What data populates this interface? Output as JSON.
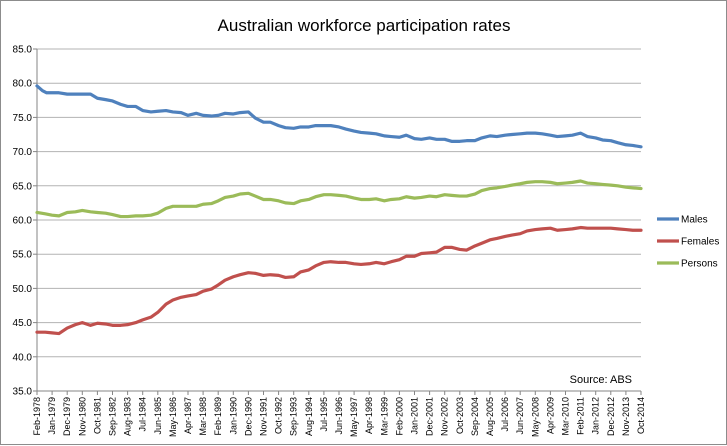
{
  "chart_data": {
    "type": "line",
    "title": "Australian workforce participation rates",
    "source_note": "Source: ABS",
    "xlabel": "",
    "ylabel": "",
    "ylim": [
      35.0,
      85.0
    ],
    "yticks": [
      "35.0",
      "40.0",
      "45.0",
      "50.0",
      "55.0",
      "60.0",
      "65.0",
      "70.0",
      "75.0",
      "80.0",
      "85.0"
    ],
    "xlim": [
      "1978-02",
      "2014-10"
    ],
    "x_tick_labels": [
      {
        "date": "1978-02",
        "label": "Feb-1978"
      },
      {
        "date": "1979-01",
        "label": "Jan-1979"
      },
      {
        "date": "1979-12",
        "label": "Dec-1979"
      },
      {
        "date": "1980-11",
        "label": "Nov-1980"
      },
      {
        "date": "1981-10",
        "label": "Oct-1981"
      },
      {
        "date": "1982-09",
        "label": "Sep-1982"
      },
      {
        "date": "1983-08",
        "label": "Aug-1983"
      },
      {
        "date": "1984-07",
        "label": "Jul-1984"
      },
      {
        "date": "1985-06",
        "label": "Jun-1985"
      },
      {
        "date": "1986-05",
        "label": "May-1986"
      },
      {
        "date": "1987-04",
        "label": "Apr-1987"
      },
      {
        "date": "1988-03",
        "label": "Mar-1988"
      },
      {
        "date": "1989-02",
        "label": "Feb-1989"
      },
      {
        "date": "1990-01",
        "label": "Jan-1990"
      },
      {
        "date": "1990-12",
        "label": "Dec-1990"
      },
      {
        "date": "1991-11",
        "label": "Nov-1991"
      },
      {
        "date": "1992-10",
        "label": "Oct-1992"
      },
      {
        "date": "1993-09",
        "label": "Sep-1993"
      },
      {
        "date": "1994-08",
        "label": "Aug-1994"
      },
      {
        "date": "1995-07",
        "label": "Jul-1995"
      },
      {
        "date": "1996-06",
        "label": "Jun-1996"
      },
      {
        "date": "1997-05",
        "label": "May-1997"
      },
      {
        "date": "1998-04",
        "label": "Apr-1998"
      },
      {
        "date": "1999-03",
        "label": "Mar-1999"
      },
      {
        "date": "2000-02",
        "label": "Feb-2000"
      },
      {
        "date": "2001-01",
        "label": "Jan-2001"
      },
      {
        "date": "2001-12",
        "label": "Dec-2001"
      },
      {
        "date": "2002-11",
        "label": "Nov-2002"
      },
      {
        "date": "2003-10",
        "label": "Oct-2003"
      },
      {
        "date": "2004-09",
        "label": "Sep-2004"
      },
      {
        "date": "2005-08",
        "label": "Aug-2005"
      },
      {
        "date": "2006-07",
        "label": "Jul-2006"
      },
      {
        "date": "2007-06",
        "label": "Jun-2007"
      },
      {
        "date": "2008-05",
        "label": "May-2008"
      },
      {
        "date": "2009-04",
        "label": "Apr-2009"
      },
      {
        "date": "2010-03",
        "label": "Mar-2010"
      },
      {
        "date": "2011-02",
        "label": "Feb-2011"
      },
      {
        "date": "2012-01",
        "label": "Jan-2012"
      },
      {
        "date": "2012-12",
        "label": "Dec-2012"
      },
      {
        "date": "2013-11",
        "label": "Nov-2013"
      },
      {
        "date": "2014-10",
        "label": "Oct-2014"
      }
    ],
    "grid": {
      "horizontal": true,
      "vertical": false
    },
    "legend_position": "right",
    "series": [
      {
        "name": "Males",
        "color": "#4f81bd",
        "points": [
          [
            "1978-02",
            79.6
          ],
          [
            "1978-06",
            78.9
          ],
          [
            "1978-09",
            78.6
          ],
          [
            "1979-06",
            78.6
          ],
          [
            "1979-12",
            78.4
          ],
          [
            "1980-06",
            78.4
          ],
          [
            "1980-11",
            78.4
          ],
          [
            "1981-05",
            78.4
          ],
          [
            "1981-10",
            77.8
          ],
          [
            "1982-04",
            77.6
          ],
          [
            "1982-09",
            77.4
          ],
          [
            "1983-03",
            76.9
          ],
          [
            "1983-08",
            76.6
          ],
          [
            "1984-02",
            76.6
          ],
          [
            "1984-07",
            76.0
          ],
          [
            "1985-01",
            75.8
          ],
          [
            "1985-06",
            75.9
          ],
          [
            "1985-12",
            76.0
          ],
          [
            "1986-05",
            75.8
          ],
          [
            "1986-11",
            75.7
          ],
          [
            "1987-04",
            75.3
          ],
          [
            "1987-10",
            75.6
          ],
          [
            "1988-03",
            75.3
          ],
          [
            "1988-09",
            75.2
          ],
          [
            "1989-02",
            75.3
          ],
          [
            "1989-07",
            75.6
          ],
          [
            "1990-01",
            75.5
          ],
          [
            "1990-06",
            75.7
          ],
          [
            "1990-12",
            75.8
          ],
          [
            "1991-05",
            74.9
          ],
          [
            "1991-11",
            74.3
          ],
          [
            "1992-04",
            74.3
          ],
          [
            "1992-10",
            73.8
          ],
          [
            "1993-03",
            73.5
          ],
          [
            "1993-09",
            73.4
          ],
          [
            "1994-02",
            73.6
          ],
          [
            "1994-08",
            73.6
          ],
          [
            "1995-01",
            73.8
          ],
          [
            "1995-07",
            73.8
          ],
          [
            "1995-12",
            73.8
          ],
          [
            "1996-06",
            73.6
          ],
          [
            "1996-11",
            73.3
          ],
          [
            "1997-05",
            73.0
          ],
          [
            "1997-10",
            72.8
          ],
          [
            "1998-04",
            72.7
          ],
          [
            "1998-09",
            72.6
          ],
          [
            "1999-03",
            72.3
          ],
          [
            "1999-08",
            72.2
          ],
          [
            "2000-02",
            72.1
          ],
          [
            "2000-07",
            72.4
          ],
          [
            "2001-01",
            71.9
          ],
          [
            "2001-06",
            71.8
          ],
          [
            "2001-12",
            72.0
          ],
          [
            "2002-05",
            71.8
          ],
          [
            "2002-11",
            71.8
          ],
          [
            "2003-04",
            71.5
          ],
          [
            "2003-10",
            71.5
          ],
          [
            "2004-03",
            71.6
          ],
          [
            "2004-09",
            71.6
          ],
          [
            "2005-02",
            72.0
          ],
          [
            "2005-08",
            72.3
          ],
          [
            "2006-01",
            72.2
          ],
          [
            "2006-07",
            72.4
          ],
          [
            "2006-12",
            72.5
          ],
          [
            "2007-06",
            72.6
          ],
          [
            "2007-11",
            72.7
          ],
          [
            "2008-05",
            72.7
          ],
          [
            "2008-10",
            72.6
          ],
          [
            "2009-04",
            72.4
          ],
          [
            "2009-09",
            72.2
          ],
          [
            "2010-03",
            72.3
          ],
          [
            "2010-08",
            72.4
          ],
          [
            "2011-02",
            72.7
          ],
          [
            "2011-07",
            72.2
          ],
          [
            "2012-01",
            72.0
          ],
          [
            "2012-06",
            71.7
          ],
          [
            "2012-12",
            71.6
          ],
          [
            "2013-05",
            71.3
          ],
          [
            "2013-11",
            71.0
          ],
          [
            "2014-04",
            70.9
          ],
          [
            "2014-10",
            70.7
          ]
        ]
      },
      {
        "name": "Females",
        "color": "#c0504d",
        "points": [
          [
            "1978-02",
            43.6
          ],
          [
            "1978-08",
            43.6
          ],
          [
            "1979-01",
            43.5
          ],
          [
            "1979-06",
            43.4
          ],
          [
            "1979-12",
            44.2
          ],
          [
            "1980-06",
            44.7
          ],
          [
            "1980-11",
            45.0
          ],
          [
            "1981-05",
            44.6
          ],
          [
            "1981-10",
            44.9
          ],
          [
            "1982-04",
            44.8
          ],
          [
            "1982-09",
            44.6
          ],
          [
            "1983-03",
            44.6
          ],
          [
            "1983-08",
            44.7
          ],
          [
            "1984-02",
            45.0
          ],
          [
            "1984-07",
            45.4
          ],
          [
            "1985-01",
            45.8
          ],
          [
            "1985-06",
            46.5
          ],
          [
            "1985-12",
            47.7
          ],
          [
            "1986-05",
            48.3
          ],
          [
            "1986-11",
            48.7
          ],
          [
            "1987-04",
            48.9
          ],
          [
            "1987-10",
            49.1
          ],
          [
            "1988-03",
            49.6
          ],
          [
            "1988-09",
            49.9
          ],
          [
            "1989-02",
            50.5
          ],
          [
            "1989-07",
            51.2
          ],
          [
            "1990-01",
            51.7
          ],
          [
            "1990-06",
            52.0
          ],
          [
            "1990-12",
            52.3
          ],
          [
            "1991-05",
            52.2
          ],
          [
            "1991-11",
            51.9
          ],
          [
            "1992-04",
            52.0
          ],
          [
            "1992-10",
            51.9
          ],
          [
            "1993-03",
            51.6
          ],
          [
            "1993-09",
            51.7
          ],
          [
            "1994-02",
            52.4
          ],
          [
            "1994-08",
            52.7
          ],
          [
            "1995-01",
            53.3
          ],
          [
            "1995-07",
            53.8
          ],
          [
            "1995-12",
            53.9
          ],
          [
            "1996-06",
            53.8
          ],
          [
            "1996-11",
            53.8
          ],
          [
            "1997-05",
            53.6
          ],
          [
            "1997-10",
            53.5
          ],
          [
            "1998-04",
            53.6
          ],
          [
            "1998-09",
            53.8
          ],
          [
            "1999-03",
            53.6
          ],
          [
            "1999-08",
            53.9
          ],
          [
            "2000-02",
            54.2
          ],
          [
            "2000-07",
            54.7
          ],
          [
            "2001-01",
            54.7
          ],
          [
            "2001-06",
            55.1
          ],
          [
            "2001-12",
            55.2
          ],
          [
            "2002-05",
            55.3
          ],
          [
            "2002-11",
            56.0
          ],
          [
            "2003-04",
            56.0
          ],
          [
            "2003-10",
            55.7
          ],
          [
            "2004-03",
            55.6
          ],
          [
            "2004-09",
            56.2
          ],
          [
            "2005-02",
            56.6
          ],
          [
            "2005-08",
            57.1
          ],
          [
            "2006-01",
            57.3
          ],
          [
            "2006-07",
            57.6
          ],
          [
            "2006-12",
            57.8
          ],
          [
            "2007-06",
            58.0
          ],
          [
            "2007-11",
            58.4
          ],
          [
            "2008-05",
            58.6
          ],
          [
            "2008-10",
            58.7
          ],
          [
            "2009-04",
            58.8
          ],
          [
            "2009-09",
            58.5
          ],
          [
            "2010-03",
            58.6
          ],
          [
            "2010-08",
            58.7
          ],
          [
            "2011-02",
            58.9
          ],
          [
            "2011-07",
            58.8
          ],
          [
            "2012-01",
            58.8
          ],
          [
            "2012-06",
            58.8
          ],
          [
            "2012-12",
            58.8
          ],
          [
            "2013-05",
            58.7
          ],
          [
            "2013-11",
            58.6
          ],
          [
            "2014-04",
            58.5
          ],
          [
            "2014-10",
            58.5
          ]
        ]
      },
      {
        "name": "Persons",
        "color": "#9bbb59",
        "points": [
          [
            "1978-02",
            61.1
          ],
          [
            "1978-08",
            60.9
          ],
          [
            "1979-01",
            60.7
          ],
          [
            "1979-06",
            60.6
          ],
          [
            "1979-12",
            61.1
          ],
          [
            "1980-06",
            61.2
          ],
          [
            "1980-11",
            61.4
          ],
          [
            "1981-05",
            61.2
          ],
          [
            "1981-10",
            61.1
          ],
          [
            "1982-04",
            61.0
          ],
          [
            "1982-09",
            60.8
          ],
          [
            "1983-03",
            60.5
          ],
          [
            "1983-08",
            60.5
          ],
          [
            "1984-02",
            60.6
          ],
          [
            "1984-07",
            60.6
          ],
          [
            "1985-01",
            60.7
          ],
          [
            "1985-06",
            61.0
          ],
          [
            "1985-12",
            61.7
          ],
          [
            "1986-05",
            62.0
          ],
          [
            "1986-11",
            62.0
          ],
          [
            "1987-04",
            62.0
          ],
          [
            "1987-10",
            62.0
          ],
          [
            "1988-03",
            62.3
          ],
          [
            "1988-09",
            62.4
          ],
          [
            "1989-02",
            62.8
          ],
          [
            "1989-07",
            63.3
          ],
          [
            "1990-01",
            63.5
          ],
          [
            "1990-06",
            63.8
          ],
          [
            "1990-12",
            63.9
          ],
          [
            "1991-05",
            63.5
          ],
          [
            "1991-11",
            63.0
          ],
          [
            "1992-04",
            63.0
          ],
          [
            "1992-10",
            62.8
          ],
          [
            "1993-03",
            62.5
          ],
          [
            "1993-09",
            62.4
          ],
          [
            "1994-02",
            62.8
          ],
          [
            "1994-08",
            63.0
          ],
          [
            "1995-01",
            63.4
          ],
          [
            "1995-07",
            63.7
          ],
          [
            "1995-12",
            63.7
          ],
          [
            "1996-06",
            63.6
          ],
          [
            "1996-11",
            63.5
          ],
          [
            "1997-05",
            63.2
          ],
          [
            "1997-10",
            63.0
          ],
          [
            "1998-04",
            63.0
          ],
          [
            "1998-09",
            63.1
          ],
          [
            "1999-03",
            62.8
          ],
          [
            "1999-08",
            63.0
          ],
          [
            "2000-02",
            63.1
          ],
          [
            "2000-07",
            63.4
          ],
          [
            "2001-01",
            63.2
          ],
          [
            "2001-06",
            63.3
          ],
          [
            "2001-12",
            63.5
          ],
          [
            "2002-05",
            63.4
          ],
          [
            "2002-11",
            63.7
          ],
          [
            "2003-04",
            63.6
          ],
          [
            "2003-10",
            63.5
          ],
          [
            "2004-03",
            63.5
          ],
          [
            "2004-09",
            63.8
          ],
          [
            "2005-02",
            64.3
          ],
          [
            "2005-08",
            64.6
          ],
          [
            "2006-01",
            64.7
          ],
          [
            "2006-07",
            64.9
          ],
          [
            "2006-12",
            65.1
          ],
          [
            "2007-06",
            65.3
          ],
          [
            "2007-11",
            65.5
          ],
          [
            "2008-05",
            65.6
          ],
          [
            "2008-10",
            65.6
          ],
          [
            "2009-04",
            65.5
          ],
          [
            "2009-09",
            65.3
          ],
          [
            "2010-03",
            65.4
          ],
          [
            "2010-08",
            65.5
          ],
          [
            "2011-02",
            65.7
          ],
          [
            "2011-07",
            65.4
          ],
          [
            "2012-01",
            65.3
          ],
          [
            "2012-06",
            65.2
          ],
          [
            "2012-12",
            65.1
          ],
          [
            "2013-05",
            65.0
          ],
          [
            "2013-11",
            64.8
          ],
          [
            "2014-04",
            64.7
          ],
          [
            "2014-10",
            64.6
          ]
        ]
      }
    ]
  }
}
